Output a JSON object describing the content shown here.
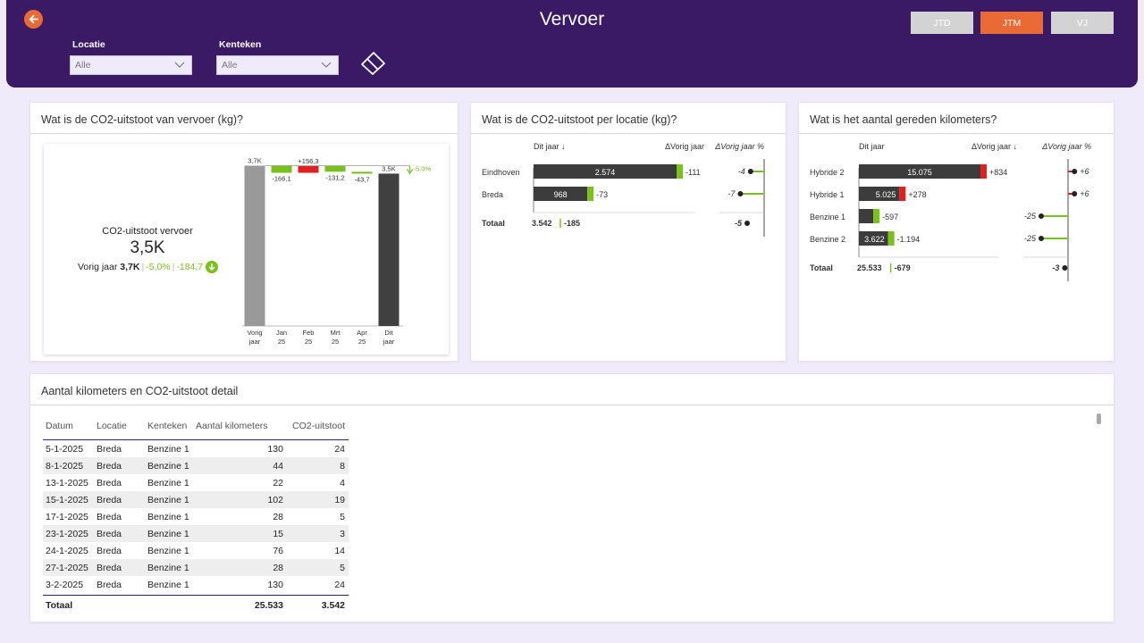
{
  "header": {
    "title": "Vervoer",
    "filters": [
      {
        "label": "Locatie",
        "value": "Alle"
      },
      {
        "label": "Kenteken",
        "value": "Alle"
      }
    ],
    "periods": [
      {
        "label": "JTD",
        "active": false
      },
      {
        "label": "JTM",
        "active": true
      },
      {
        "label": "VJ",
        "active": false
      }
    ],
    "colors": {
      "header_bg": "#3a1a64",
      "accent": "#e96a34",
      "inactive": "#d3d3d3"
    }
  },
  "co2_card": {
    "title": "Wat is de CO2-uitstoot van vervoer (kg)?",
    "kpi_label": "CO2-uitstoot vervoer",
    "kpi_value": "3,5K",
    "prev_label": "Vorig jaar",
    "prev_value": "3,7K",
    "delta_pct": "-5,0%",
    "delta_abs": "-184,7"
  },
  "location_card": {
    "title": "Wat is de CO2-uitstoot per locatie (kg)?",
    "col_current": "Dit jaar ↓",
    "col_delta": "ΔVorig jaar",
    "col_delta_pct": "ΔVorig jaar %",
    "rows": [
      {
        "name": "Eindhoven",
        "value_label": "2.574",
        "delta_label": "-111",
        "pct_label": "-4"
      },
      {
        "name": "Breda",
        "value_label": "968",
        "delta_label": "-73",
        "pct_label": "-7"
      }
    ],
    "total_label": "Totaal",
    "total_value": "3.542",
    "total_delta": "-185",
    "total_pct": "-5"
  },
  "km_card": {
    "title": "Wat is het aantal gereden kilometers?",
    "col_current": "Dit jaar",
    "col_delta": "ΔVorig jaar ↓",
    "col_delta_pct": "ΔVorig jaar %",
    "rows": [
      {
        "name": "Hybride 2",
        "value_label": "15.075",
        "delta_label": "+834",
        "pct_label": "+6"
      },
      {
        "name": "Hybride 1",
        "value_label": "5.025",
        "delta_label": "+278",
        "pct_label": "+6"
      },
      {
        "name": "Benzine 1",
        "value_label": "",
        "delta_label": "-597",
        "pct_label": "-25"
      },
      {
        "name": "Benzine 2",
        "value_label": "3.622",
        "delta_label": "-1.194",
        "pct_label": "-25"
      }
    ],
    "total_label": "Totaal",
    "total_value": "25.533",
    "total_delta": "-679",
    "total_pct": "-3"
  },
  "detail_card": {
    "title": "Aantal kilometers en CO2-uitstoot detail",
    "columns": [
      "Datum",
      "Locatie",
      "Kenteken",
      "Aantal kilometers",
      "CO2-uitstoot"
    ],
    "rows": [
      [
        "5-1-2025",
        "Breda",
        "Benzine 1",
        "130",
        "24"
      ],
      [
        "8-1-2025",
        "Breda",
        "Benzine 1",
        "44",
        "8"
      ],
      [
        "13-1-2025",
        "Breda",
        "Benzine 1",
        "22",
        "4"
      ],
      [
        "15-1-2025",
        "Breda",
        "Benzine 1",
        "102",
        "19"
      ],
      [
        "17-1-2025",
        "Breda",
        "Benzine 1",
        "28",
        "5"
      ],
      [
        "23-1-2025",
        "Breda",
        "Benzine 1",
        "15",
        "3"
      ],
      [
        "24-1-2025",
        "Breda",
        "Benzine 1",
        "76",
        "14"
      ],
      [
        "27-1-2025",
        "Breda",
        "Benzine 1",
        "28",
        "5"
      ],
      [
        "3-2-2025",
        "Breda",
        "Benzine 1",
        "130",
        "24"
      ]
    ],
    "total_label": "Totaal",
    "total_km": "25.533",
    "total_co2": "3.542"
  },
  "chart_data": [
    {
      "type": "bar",
      "variant": "waterfall",
      "categories": [
        "Vorig jaar",
        "Jan 25",
        "Feb 25",
        "Mrt 25",
        "Apr 25",
        "Dit jaar"
      ],
      "values": [
        3727,
        -166.1,
        156.3,
        -131.2,
        -43.7,
        3542
      ],
      "labels": [
        "3,7K",
        "-166,1",
        "+156,3",
        "-131,2",
        "-43,7",
        "3,5K"
      ],
      "delta_annotation": "-5,0%",
      "colors": {
        "base": "#999999",
        "decrease": "#7bc11e",
        "increase": "#e02020",
        "total": "#404040"
      }
    },
    {
      "type": "bar",
      "orientation": "horizontal",
      "categories": [
        "Eindhoven",
        "Breda"
      ],
      "series": [
        {
          "name": "Dit jaar ↓",
          "values": [
            2574,
            968
          ]
        },
        {
          "name": "ΔVorig jaar",
          "values": [
            -111,
            -73
          ]
        },
        {
          "name": "ΔVorig jaar %",
          "values": [
            -4,
            -7
          ]
        }
      ],
      "total": {
        "value": 3542,
        "delta": -185,
        "pct": -5
      }
    },
    {
      "type": "bar",
      "orientation": "horizontal",
      "categories": [
        "Hybride 2",
        "Hybride 1",
        "Benzine 1",
        "Benzine 2"
      ],
      "series": [
        {
          "name": "Dit jaar",
          "values": [
            15075,
            5025,
            1791,
            3622
          ]
        },
        {
          "name": "ΔVorig jaar ↓",
          "values": [
            834,
            278,
            -597,
            -1194
          ]
        },
        {
          "name": "ΔVorig jaar %",
          "values": [
            6,
            6,
            -25,
            -25
          ]
        }
      ],
      "total": {
        "value": 25533,
        "delta": -679,
        "pct": -3
      }
    }
  ]
}
